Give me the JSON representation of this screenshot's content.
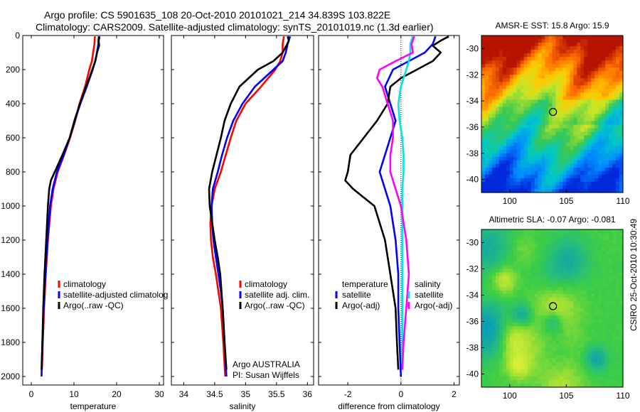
{
  "header": {
    "title_line1": "Argo profile: CS 5901635_108 20-Oct-2010 20101021_214 34.839S 103.822E",
    "title_line2": "Climatology: CARS2009. Satellite-adjusted climatology: synTS_20101019.nc (1.3d earlier)"
  },
  "credit": "Argo AUSTRALIA",
  "pi": "PI: Susan Wijffels",
  "side_stamp": "CSIRO 25-Oct-2010 10:30:49",
  "colors": {
    "climatology": "#ff0000",
    "satellite": "#0000ff",
    "argo": "#000000",
    "salinity_sat": "#00e5e5",
    "salinity_argo": "#ff00ff"
  },
  "chart_data": [
    {
      "type": "line",
      "xlabel": "temperature",
      "ylabel": "",
      "xlim": [
        -2,
        31
      ],
      "ylim": [
        2050,
        0
      ],
      "xticks": [
        0,
        10,
        20,
        30
      ],
      "yticks": [
        0,
        200,
        400,
        600,
        800,
        1000,
        1200,
        1400,
        1600,
        1800,
        2000
      ],
      "legend": [
        "climatology",
        "satellite-adjusted climatolog",
        "Argo(..raw -QC)"
      ],
      "legend_position": "lower-right",
      "series": [
        {
          "name": "climatology",
          "color": "#ff0000",
          "depth": [
            5,
            50,
            100,
            150,
            200,
            300,
            400,
            500,
            600,
            700,
            800,
            900,
            1000,
            1200,
            1400,
            1600,
            1800,
            1960
          ],
          "value": [
            14.9,
            14.8,
            14.5,
            14.2,
            13.6,
            12.6,
            11.3,
            10.3,
            9.1,
            7.7,
            6.2,
            5.2,
            4.6,
            3.9,
            3.4,
            3.0,
            2.7,
            2.5
          ]
        },
        {
          "name": "satellite-adjusted climatolog",
          "color": "#0000ff",
          "depth": [
            5,
            50,
            100,
            150,
            200,
            300,
            400,
            500,
            600,
            700,
            800,
            900,
            1000,
            1200,
            1400,
            1600,
            1800,
            2000
          ],
          "value": [
            15.8,
            15.7,
            15.4,
            15.0,
            14.4,
            13.0,
            11.5,
            10.2,
            9.0,
            7.6,
            6.0,
            5.0,
            4.4,
            3.8,
            3.3,
            2.9,
            2.6,
            2.4
          ]
        },
        {
          "name": "Argo(..raw -QC)",
          "color": "#000000",
          "depth": [
            5,
            30,
            60,
            100,
            150,
            200,
            250,
            300,
            400,
            500,
            600,
            700,
            800,
            850,
            900,
            1000,
            1200,
            1400,
            1600,
            1800,
            1960
          ],
          "value": [
            16.0,
            15.8,
            15.9,
            15.4,
            15.0,
            14.3,
            13.6,
            12.8,
            11.4,
            10.1,
            9.0,
            7.3,
            5.5,
            4.6,
            4.2,
            3.9,
            3.5,
            3.1,
            2.8,
            2.6,
            2.4
          ]
        }
      ]
    },
    {
      "type": "line",
      "xlabel": "salinity",
      "ylabel": "",
      "xlim": [
        33.8,
        36.1
      ],
      "ylim": [
        2050,
        0
      ],
      "xticks": [
        34,
        34.5,
        35,
        35.5,
        36
      ],
      "legend": [
        "climatology",
        "satellite adj. clim.",
        "Argo(..raw -QC)"
      ],
      "legend_position": "lower-right",
      "series": [
        {
          "name": "climatology",
          "color": "#ff0000",
          "depth": [
            5,
            50,
            100,
            150,
            200,
            300,
            400,
            500,
            600,
            700,
            800,
            900,
            1000,
            1100,
            1200,
            1300,
            1400,
            1500,
            1600,
            1800,
            2000
          ],
          "value": [
            35.62,
            35.6,
            35.6,
            35.56,
            35.48,
            35.25,
            35.0,
            34.85,
            34.76,
            34.68,
            34.6,
            34.5,
            34.45,
            34.43,
            34.44,
            34.47,
            34.52,
            34.56,
            34.6,
            34.64,
            34.67
          ]
        },
        {
          "name": "satellite adj. clim.",
          "color": "#0000ff",
          "depth": [
            5,
            50,
            100,
            150,
            200,
            300,
            400,
            500,
            600,
            700,
            800,
            900,
            1000,
            1100,
            1200,
            1300,
            1400,
            1500,
            1600,
            1800,
            2000
          ],
          "value": [
            35.72,
            35.68,
            35.65,
            35.6,
            35.45,
            35.15,
            34.95,
            34.8,
            34.7,
            34.62,
            34.55,
            34.47,
            34.45,
            34.46,
            34.48,
            34.52,
            34.56,
            34.6,
            34.63,
            34.66,
            34.69
          ]
        },
        {
          "name": "Argo(..raw -QC)",
          "color": "#000000",
          "depth": [
            5,
            30,
            60,
            100,
            150,
            200,
            250,
            300,
            400,
            500,
            600,
            700,
            800,
            900,
            1000,
            1100,
            1200,
            1300,
            1400,
            1600,
            1800,
            1960
          ],
          "value": [
            35.68,
            35.7,
            35.66,
            35.6,
            35.45,
            35.2,
            35.05,
            34.9,
            34.76,
            34.66,
            34.6,
            34.53,
            34.46,
            34.41,
            34.42,
            34.46,
            34.5,
            34.55,
            34.59,
            34.63,
            34.66,
            34.69
          ]
        }
      ]
    },
    {
      "type": "line",
      "xlabel": "difference from climatology",
      "ylabel": "",
      "xlim": [
        -3.1,
        2.2
      ],
      "ylim": [
        2050,
        0
      ],
      "xticks": [
        -2,
        0,
        2
      ],
      "legend_groups": [
        {
          "title": "temperature",
          "entries": [
            "satellite",
            "Argo(-adj)"
          ]
        },
        {
          "title": "salinity",
          "entries": [
            "satellite",
            "Argo(-adj)"
          ]
        }
      ],
      "legend_position": "lower-right",
      "series": [
        {
          "name": "temperature satellite",
          "color": "#0000ff",
          "depth": [
            5,
            50,
            100,
            150,
            200,
            300,
            400,
            500,
            600,
            700,
            800,
            900,
            1000,
            1200,
            1400,
            1600,
            1800,
            2000
          ],
          "value": [
            1.3,
            1.2,
            0.9,
            0.3,
            -0.3,
            -0.6,
            -0.4,
            -0.2,
            -0.4,
            -0.6,
            -0.8,
            -0.6,
            -0.4,
            -0.2,
            -0.1,
            -0.1,
            -0.05,
            0.0
          ]
        },
        {
          "name": "temperature Argo(-adj)",
          "color": "#000000",
          "depth": [
            5,
            30,
            60,
            100,
            150,
            200,
            250,
            300,
            400,
            500,
            600,
            700,
            800,
            850,
            900,
            1000,
            1200,
            1400,
            1600,
            1800,
            1960
          ],
          "value": [
            1.8,
            1.5,
            1.2,
            1.5,
            1.2,
            0.6,
            0.0,
            -0.4,
            -0.5,
            -0.9,
            -1.4,
            -1.9,
            -2.0,
            -2.1,
            -1.8,
            -1.0,
            -0.6,
            -0.4,
            -0.2,
            -0.15,
            -0.1
          ]
        },
        {
          "name": "salinity satellite",
          "color": "#00e5e5",
          "depth": [
            5,
            50,
            100,
            150,
            200,
            300,
            400,
            500,
            600,
            700,
            800,
            900,
            1000,
            1200,
            1400,
            1600,
            1800,
            1960
          ],
          "value": [
            0.45,
            0.35,
            0.35,
            0.3,
            0.2,
            0.0,
            -0.1,
            -0.05,
            0.05,
            0.1,
            0.1,
            0.05,
            0.05,
            0.05,
            0.05,
            0.05,
            0.05,
            0.05
          ]
        },
        {
          "name": "salinity Argo(-adj)",
          "color": "#ff00ff",
          "depth": [
            5,
            50,
            100,
            150,
            200,
            250,
            300,
            400,
            500,
            600,
            700,
            800,
            900,
            1000,
            1200,
            1400,
            1600,
            1800,
            1960
          ],
          "value": [
            0.5,
            0.4,
            0.45,
            -0.2,
            -0.8,
            -0.9,
            -0.7,
            -0.5,
            -0.3,
            -0.3,
            -0.4,
            -0.4,
            -0.2,
            0.0,
            0.2,
            0.3,
            0.2,
            0.1,
            0.05
          ]
        }
      ]
    },
    {
      "type": "heatmap",
      "title": "AMSR-E SST: 15.8 Argo: 15.9",
      "xlim": [
        97.5,
        110
      ],
      "ylim": [
        -41,
        -29
      ],
      "xticks": [
        100,
        105,
        110
      ],
      "yticks": [
        -30,
        -32,
        -34,
        -36,
        -38,
        -40
      ],
      "marker": {
        "lon": 103.822,
        "lat": -34.839
      }
    },
    {
      "type": "heatmap",
      "title": "Altimetric SLA: -0.07 Argo: -0.081",
      "xlim": [
        97.5,
        110
      ],
      "ylim": [
        -41,
        -29
      ],
      "xticks": [
        100,
        105,
        110
      ],
      "yticks": [
        -30,
        -32,
        -34,
        -36,
        -38,
        -40
      ],
      "marker": {
        "lon": 103.822,
        "lat": -34.839
      }
    }
  ]
}
